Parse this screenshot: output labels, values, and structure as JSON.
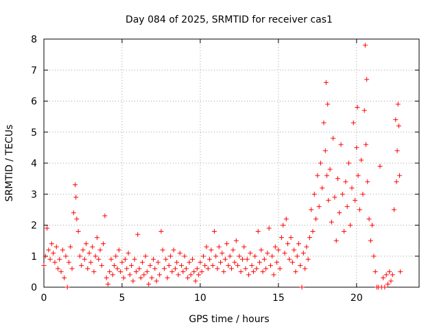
{
  "chart_data": {
    "type": "scatter",
    "title": "Day 084 of 2025, SRMTID for receiver cas1",
    "xlabel": "GPS time / hours",
    "ylabel": "SRMTID / TECUs",
    "xlim": [
      0,
      24
    ],
    "ylim": [
      0,
      8
    ],
    "xticks": [
      0,
      5,
      10,
      15,
      20
    ],
    "yticks": [
      0,
      1,
      2,
      3,
      4,
      5,
      6,
      7,
      8
    ],
    "grid": true,
    "marker": "+",
    "marker_color": "#ff0000",
    "series": [
      {
        "name": "SRMTID",
        "points": [
          [
            0.0,
            0.7
          ],
          [
            0.1,
            1.0
          ],
          [
            0.2,
            1.9
          ],
          [
            0.3,
            1.2
          ],
          [
            0.4,
            0.9
          ],
          [
            0.5,
            1.4
          ],
          [
            0.6,
            1.1
          ],
          [
            0.7,
            0.8
          ],
          [
            0.8,
            1.3
          ],
          [
            0.9,
            0.6
          ],
          [
            1.0,
            0.9
          ],
          [
            1.1,
            0.5
          ],
          [
            1.2,
            1.2
          ],
          [
            1.3,
            0.3
          ],
          [
            1.4,
            1.0
          ],
          [
            1.5,
            0.0
          ],
          [
            1.6,
            0.8
          ],
          [
            1.7,
            1.3
          ],
          [
            1.8,
            0.6
          ],
          [
            1.9,
            2.4
          ],
          [
            2.0,
            3.3
          ],
          [
            2.05,
            2.9
          ],
          [
            2.1,
            2.2
          ],
          [
            2.2,
            1.8
          ],
          [
            2.3,
            1.0
          ],
          [
            2.4,
            0.7
          ],
          [
            2.5,
            1.2
          ],
          [
            2.6,
            0.9
          ],
          [
            2.7,
            1.4
          ],
          [
            2.8,
            0.6
          ],
          [
            2.9,
            1.1
          ],
          [
            3.0,
            0.8
          ],
          [
            3.1,
            1.3
          ],
          [
            3.2,
            0.5
          ],
          [
            3.3,
            1.0
          ],
          [
            3.4,
            1.6
          ],
          [
            3.5,
            0.9
          ],
          [
            3.6,
            1.2
          ],
          [
            3.7,
            0.7
          ],
          [
            3.8,
            1.4
          ],
          [
            3.9,
            2.3
          ],
          [
            4.0,
            0.3
          ],
          [
            4.1,
            0.1
          ],
          [
            4.2,
            0.5
          ],
          [
            4.3,
            0.9
          ],
          [
            4.4,
            0.4
          ],
          [
            4.5,
            0.7
          ],
          [
            4.6,
            1.0
          ],
          [
            4.7,
            0.6
          ],
          [
            4.8,
            1.2
          ],
          [
            4.9,
            0.5
          ],
          [
            5.0,
            0.8
          ],
          [
            5.1,
            0.3
          ],
          [
            5.2,
            0.9
          ],
          [
            5.3,
            0.6
          ],
          [
            5.4,
            1.1
          ],
          [
            5.5,
            0.4
          ],
          [
            5.6,
            0.7
          ],
          [
            5.7,
            0.2
          ],
          [
            5.8,
            0.9
          ],
          [
            5.9,
            0.5
          ],
          [
            6.0,
            1.7
          ],
          [
            6.1,
            0.6
          ],
          [
            6.2,
            0.3
          ],
          [
            6.3,
            0.8
          ],
          [
            6.4,
            0.4
          ],
          [
            6.5,
            1.0
          ],
          [
            6.6,
            0.5
          ],
          [
            6.7,
            0.1
          ],
          [
            6.8,
            0.7
          ],
          [
            6.9,
            0.3
          ],
          [
            7.0,
            0.9
          ],
          [
            7.1,
            0.6
          ],
          [
            7.2,
            0.2
          ],
          [
            7.3,
            0.8
          ],
          [
            7.4,
            0.4
          ],
          [
            7.5,
            1.8
          ],
          [
            7.6,
            1.2
          ],
          [
            7.7,
            0.6
          ],
          [
            7.8,
            0.9
          ],
          [
            7.9,
            0.3
          ],
          [
            8.0,
            0.7
          ],
          [
            8.1,
            1.0
          ],
          [
            8.2,
            0.5
          ],
          [
            8.3,
            1.2
          ],
          [
            8.4,
            0.6
          ],
          [
            8.5,
            0.8
          ],
          [
            8.6,
            0.4
          ],
          [
            8.7,
            1.1
          ],
          [
            8.8,
            0.7
          ],
          [
            8.9,
            0.5
          ],
          [
            9.0,
            1.0
          ],
          [
            9.1,
            0.6
          ],
          [
            9.2,
            0.3
          ],
          [
            9.3,
            0.8
          ],
          [
            9.4,
            0.4
          ],
          [
            9.5,
            0.9
          ],
          [
            9.6,
            0.5
          ],
          [
            9.7,
            0.2
          ],
          [
            9.8,
            0.6
          ],
          [
            9.9,
            0.4
          ],
          [
            10.0,
            0.8
          ],
          [
            10.1,
            0.5
          ],
          [
            10.2,
            1.0
          ],
          [
            10.3,
            0.7
          ],
          [
            10.4,
            1.3
          ],
          [
            10.5,
            0.6
          ],
          [
            10.6,
            0.9
          ],
          [
            10.7,
            1.2
          ],
          [
            10.8,
            0.7
          ],
          [
            10.9,
            1.8
          ],
          [
            11.0,
            1.0
          ],
          [
            11.1,
            0.6
          ],
          [
            11.2,
            1.3
          ],
          [
            11.3,
            0.8
          ],
          [
            11.4,
            1.1
          ],
          [
            11.5,
            0.5
          ],
          [
            11.6,
            0.9
          ],
          [
            11.7,
            1.4
          ],
          [
            11.8,
            0.7
          ],
          [
            11.9,
            1.0
          ],
          [
            12.0,
            0.6
          ],
          [
            12.1,
            1.2
          ],
          [
            12.2,
            0.8
          ],
          [
            12.3,
            1.5
          ],
          [
            12.4,
            0.7
          ],
          [
            12.5,
            1.0
          ],
          [
            12.6,
            0.5
          ],
          [
            12.7,
            0.9
          ],
          [
            12.8,
            1.3
          ],
          [
            12.9,
            0.6
          ],
          [
            13.0,
            0.9
          ],
          [
            13.1,
            0.4
          ],
          [
            13.2,
            1.1
          ],
          [
            13.3,
            0.7
          ],
          [
            13.4,
            0.5
          ],
          [
            13.5,
            1.0
          ],
          [
            13.6,
            0.6
          ],
          [
            13.7,
            1.8
          ],
          [
            13.8,
            0.8
          ],
          [
            13.9,
            1.2
          ],
          [
            14.0,
            0.5
          ],
          [
            14.1,
            0.9
          ],
          [
            14.2,
            0.6
          ],
          [
            14.3,
            1.1
          ],
          [
            14.4,
            1.9
          ],
          [
            14.5,
            0.7
          ],
          [
            14.6,
            1.0
          ],
          [
            14.7,
            0.4
          ],
          [
            14.8,
            1.3
          ],
          [
            14.9,
            0.8
          ],
          [
            15.0,
            1.2
          ],
          [
            15.1,
            0.6
          ],
          [
            15.2,
            1.6
          ],
          [
            15.3,
            2.0
          ],
          [
            15.4,
            1.1
          ],
          [
            15.5,
            2.2
          ],
          [
            15.6,
            1.4
          ],
          [
            15.7,
            0.9
          ],
          [
            15.8,
            1.6
          ],
          [
            15.9,
            0.8
          ],
          [
            16.0,
            1.2
          ],
          [
            16.1,
            0.5
          ],
          [
            16.2,
            1.0
          ],
          [
            16.3,
            1.4
          ],
          [
            16.4,
            0.7
          ],
          [
            16.5,
            0.0
          ],
          [
            16.6,
            1.1
          ],
          [
            16.7,
            0.6
          ],
          [
            16.8,
            1.3
          ],
          [
            16.9,
            0.9
          ],
          [
            17.0,
            1.6
          ],
          [
            17.1,
            2.5
          ],
          [
            17.2,
            1.8
          ],
          [
            17.3,
            3.0
          ],
          [
            17.4,
            2.2
          ],
          [
            17.5,
            3.6
          ],
          [
            17.6,
            2.6
          ],
          [
            17.7,
            4.0
          ],
          [
            17.8,
            3.2
          ],
          [
            17.9,
            5.3
          ],
          [
            18.0,
            4.4
          ],
          [
            18.05,
            6.6
          ],
          [
            18.1,
            3.6
          ],
          [
            18.15,
            5.9
          ],
          [
            18.2,
            2.8
          ],
          [
            18.3,
            3.8
          ],
          [
            18.4,
            2.1
          ],
          [
            18.5,
            4.8
          ],
          [
            18.6,
            2.9
          ],
          [
            18.7,
            1.5
          ],
          [
            18.8,
            3.5
          ],
          [
            18.9,
            2.4
          ],
          [
            19.0,
            4.6
          ],
          [
            19.1,
            3.0
          ],
          [
            19.2,
            1.8
          ],
          [
            19.3,
            3.4
          ],
          [
            19.4,
            2.6
          ],
          [
            19.5,
            4.0
          ],
          [
            19.6,
            2.0
          ],
          [
            19.7,
            3.2
          ],
          [
            19.8,
            5.3
          ],
          [
            19.9,
            2.8
          ],
          [
            20.0,
            4.5
          ],
          [
            20.05,
            5.8
          ],
          [
            20.1,
            3.6
          ],
          [
            20.2,
            2.5
          ],
          [
            20.3,
            4.1
          ],
          [
            20.4,
            3.0
          ],
          [
            20.5,
            5.7
          ],
          [
            20.55,
            7.8
          ],
          [
            20.6,
            4.6
          ],
          [
            20.65,
            6.7
          ],
          [
            20.7,
            3.4
          ],
          [
            20.8,
            2.2
          ],
          [
            20.9,
            1.5
          ],
          [
            21.0,
            2.0
          ],
          [
            21.1,
            1.0
          ],
          [
            21.2,
            0.5
          ],
          [
            21.3,
            0.0
          ],
          [
            21.4,
            0.0
          ],
          [
            21.5,
            3.9
          ],
          [
            21.6,
            0.0
          ],
          [
            21.7,
            0.3
          ],
          [
            21.8,
            0.0
          ],
          [
            21.9,
            0.4
          ],
          [
            22.0,
            0.1
          ],
          [
            22.1,
            0.5
          ],
          [
            22.2,
            0.2
          ],
          [
            22.3,
            0.4
          ],
          [
            22.4,
            2.5
          ],
          [
            22.5,
            5.4
          ],
          [
            22.55,
            3.4
          ],
          [
            22.6,
            4.4
          ],
          [
            22.65,
            5.9
          ],
          [
            22.7,
            5.2
          ],
          [
            22.75,
            3.6
          ],
          [
            22.8,
            0.5
          ]
        ]
      }
    ]
  }
}
